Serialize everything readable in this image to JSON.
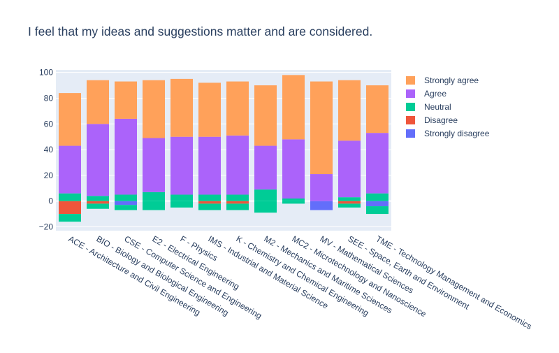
{
  "chart_data": {
    "type": "bar",
    "barmode": "relative",
    "title": "I feel that my ideas and suggestions matter and are considered.",
    "xlabel": "",
    "ylabel": "",
    "ylim": [
      -23,
      102
    ],
    "yticks": [
      -20,
      0,
      20,
      40,
      60,
      80,
      100
    ],
    "grid": true,
    "legend_position": "top-right",
    "plot_background": "#e5ecf6",
    "categories": [
      "ACE - Architecture and Civil Engineering",
      "BIO - Biology and Biological Engineering",
      "CSE - Computer Science and Engineering",
      "E2 - Electrical Engineering",
      "F - Physics",
      "IMS - Industrial and Material Science",
      "K - Chemistry and Chemical Engineering",
      "M2 - Mechanics and Maritime Sciences",
      "MC2 - Microtechnology and Nanoscience",
      "MV - Mathematical Sciences",
      "SEE - Space, Earth and Environment",
      "TME - Technology Management and Economics"
    ],
    "series": [
      {
        "name": "Strongly disagree",
        "color": "#636efa",
        "values": [
          0,
          0,
          -3,
          0,
          0,
          0,
          0,
          0,
          0,
          -7,
          0,
          -4
        ]
      },
      {
        "name": "Disagree",
        "color": "#ef553b",
        "values": [
          -10,
          -2,
          0,
          0,
          0,
          -2,
          -2,
          0,
          0,
          0,
          -2,
          0
        ]
      },
      {
        "name": "Neutral",
        "color": "#00cc96",
        "values": [
          6,
          4,
          5,
          7,
          5,
          5,
          5,
          9,
          2,
          0,
          3,
          6
        ]
      },
      {
        "name": "Neutral",
        "color": "#00cc96",
        "values_negative": [
          -6,
          -4,
          -4,
          -7,
          -5,
          -5,
          -5,
          -9,
          -2,
          0,
          -3,
          -6
        ]
      },
      {
        "name": "Agree",
        "color": "#ab63fa",
        "values": [
          37,
          56,
          59,
          42,
          45,
          45,
          46,
          34,
          46,
          21,
          44,
          47
        ]
      },
      {
        "name": "Strongly agree",
        "color": "#ffa15a",
        "values": [
          41,
          34,
          29,
          45,
          45,
          42,
          42,
          47,
          50,
          72,
          47,
          37
        ]
      }
    ],
    "legend_order": [
      "Strongly agree",
      "Agree",
      "Neutral",
      "Disagree",
      "Strongly disagree"
    ]
  }
}
